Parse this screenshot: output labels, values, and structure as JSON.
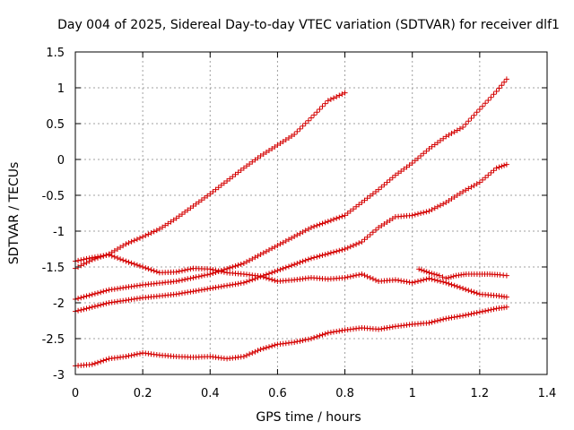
{
  "chart_data": {
    "type": "scatter",
    "title": "Day 004 of 2025, Sidereal Day-to-day VTEC variation (SDTVAR) for receiver dlf1",
    "xlabel": "GPS time / hours",
    "ylabel": "SDTVAR / TECUs",
    "xlim": [
      0,
      1.4
    ],
    "ylim": [
      -3,
      1.5
    ],
    "xticks": [
      0,
      0.2,
      0.4,
      0.6,
      0.8,
      1,
      1.2,
      1.4
    ],
    "xtick_labels": [
      "0",
      "0.2",
      "0.4",
      "0.6",
      "0.8",
      "1",
      "1.2",
      "1.4"
    ],
    "yticks": [
      -3,
      -2.5,
      -2,
      -1.5,
      -1,
      -0.5,
      0,
      0.5,
      1,
      1.5
    ],
    "ytick_labels": [
      "-3",
      "-2.5",
      "-2",
      "-1.5",
      "-1",
      "-0.5",
      "0",
      "0.5",
      "1",
      "1.5"
    ],
    "grid": true,
    "marker": "+",
    "color": "#d40000",
    "series": [
      {
        "x": [
          0,
          0.05,
          0.1,
          0.15,
          0.2,
          0.25,
          0.3,
          0.35,
          0.4,
          0.45,
          0.5,
          0.55,
          0.6,
          0.65,
          0.7,
          0.75,
          0.8
        ],
        "y": [
          -1.52,
          -1.4,
          -1.32,
          -1.18,
          -1.08,
          -0.97,
          -0.82,
          -0.65,
          -0.48,
          -0.3,
          -0.12,
          0.05,
          0.2,
          0.35,
          0.58,
          0.82,
          0.93
        ]
      },
      {
        "x": [
          0,
          0.1,
          0.2,
          0.3,
          0.4,
          0.5,
          0.6,
          0.7,
          0.8,
          0.85,
          0.9,
          0.95,
          1.0,
          1.05,
          1.1,
          1.15,
          1.2,
          1.25,
          1.28
        ],
        "y": [
          -1.95,
          -1.82,
          -1.75,
          -1.7,
          -1.6,
          -1.45,
          -1.2,
          -0.95,
          -0.78,
          -0.6,
          -0.42,
          -0.22,
          -0.05,
          0.15,
          0.32,
          0.45,
          0.7,
          0.95,
          1.12
        ]
      },
      {
        "x": [
          0,
          0.1,
          0.2,
          0.3,
          0.4,
          0.5,
          0.6,
          0.7,
          0.8,
          0.85,
          0.9,
          0.95,
          1.0,
          1.05,
          1.1,
          1.15,
          1.2,
          1.25,
          1.28
        ],
        "y": [
          -2.12,
          -2.0,
          -1.93,
          -1.88,
          -1.8,
          -1.72,
          -1.55,
          -1.38,
          -1.25,
          -1.15,
          -0.95,
          -0.8,
          -0.78,
          -0.72,
          -0.6,
          -0.45,
          -0.32,
          -0.12,
          -0.07
        ]
      },
      {
        "x": [
          0,
          0.05,
          0.1,
          0.15,
          0.2,
          0.25,
          0.3,
          0.35,
          0.4,
          0.45,
          0.5,
          0.55,
          0.6,
          0.65,
          0.7,
          0.75,
          0.8,
          0.85,
          0.9,
          0.95,
          1.0,
          1.05,
          1.1,
          1.15,
          1.2,
          1.25,
          1.28
        ],
        "y": [
          -1.42,
          -1.37,
          -1.33,
          -1.42,
          -1.5,
          -1.58,
          -1.57,
          -1.52,
          -1.53,
          -1.58,
          -1.6,
          -1.63,
          -1.7,
          -1.68,
          -1.65,
          -1.67,
          -1.65,
          -1.6,
          -1.7,
          -1.68,
          -1.72,
          -1.66,
          -1.72,
          -1.8,
          -1.88,
          -1.9,
          -1.92
        ]
      },
      {
        "x": [
          0,
          0.05,
          0.1,
          0.15,
          0.2,
          0.25,
          0.3,
          0.35,
          0.4,
          0.45,
          0.5,
          0.55,
          0.6,
          0.65,
          0.7,
          0.75,
          0.8,
          0.85,
          0.9,
          0.95,
          1.0,
          1.05,
          1.1,
          1.15,
          1.2,
          1.25,
          1.28
        ],
        "y": [
          -2.88,
          -2.86,
          -2.78,
          -2.75,
          -2.7,
          -2.73,
          -2.75,
          -2.76,
          -2.75,
          -2.78,
          -2.75,
          -2.65,
          -2.58,
          -2.55,
          -2.5,
          -2.42,
          -2.38,
          -2.35,
          -2.37,
          -2.33,
          -2.3,
          -2.28,
          -2.22,
          -2.18,
          -2.13,
          -2.08,
          -2.06
        ]
      },
      {
        "x": [
          1.02,
          1.05,
          1.08,
          1.1,
          1.13,
          1.16,
          1.2,
          1.23,
          1.26,
          1.28
        ],
        "y": [
          -1.53,
          -1.58,
          -1.62,
          -1.66,
          -1.62,
          -1.6,
          -1.6,
          -1.6,
          -1.61,
          -1.62
        ]
      }
    ]
  }
}
